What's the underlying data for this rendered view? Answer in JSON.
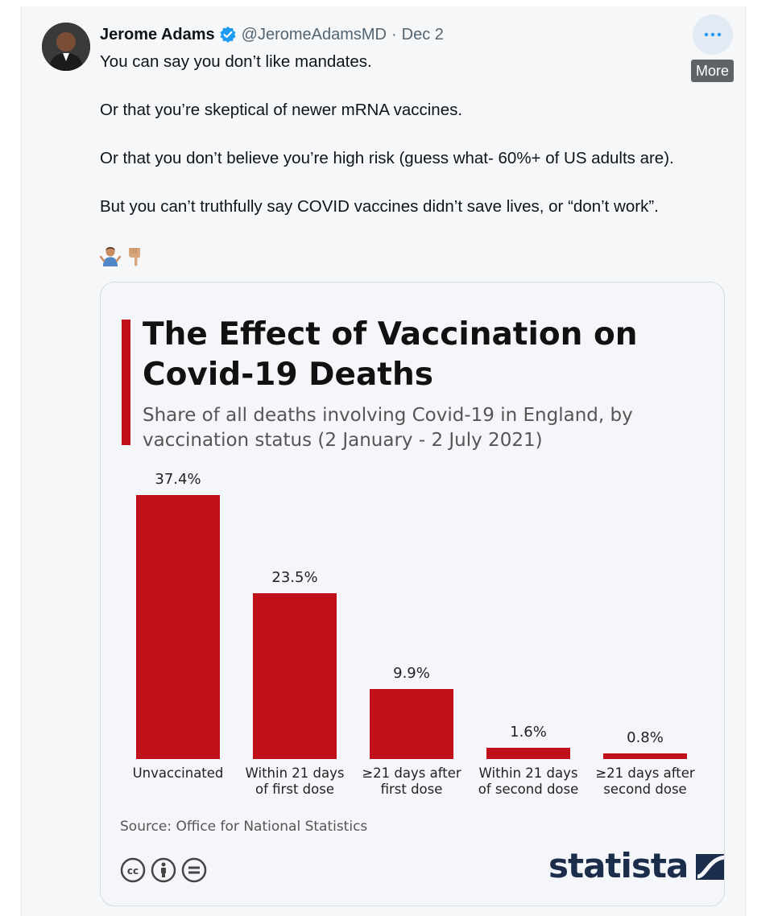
{
  "tweet": {
    "author_name": "Jerome Adams",
    "handle": "@JeromeAdamsMD",
    "separator": "·",
    "date": "Dec 2",
    "more_tooltip": "More",
    "paragraphs": [
      "You can say you don’t like mandates.",
      "Or that you’re skeptical of newer mRNA vaccines.",
      "Or that you don’t believe you’re high risk (guess what- 60%+ of US adults are).",
      "But you can’t truthfully say COVID vaccines didn’t save lives, or “don’t work”."
    ],
    "emojis": [
      "man-shrugging-icon",
      "backhand-index-pointing-down-icon"
    ]
  },
  "colors": {
    "bar": "#c0101a",
    "verified": "#1d9bf0",
    "statista": "#1b2d4a"
  },
  "chart_data": {
    "type": "bar",
    "title": "The Effect of Vaccination on Covid-19 Deaths",
    "subtitle": "Share of all deaths involving Covid-19 in England, by vaccination status (2 January - 2 July 2021)",
    "categories": [
      "Unvaccinated",
      "Within 21 days\nof first dose",
      "≥21 days after\nfirst dose",
      "Within 21 days\nof second dose",
      "≥21 days after\nsecond dose"
    ],
    "values": [
      37.4,
      23.5,
      9.9,
      1.6,
      0.8
    ],
    "value_labels": [
      "37.4%",
      "23.5%",
      "9.9%",
      "1.6%",
      "0.8%"
    ],
    "unit": "%",
    "grid": false,
    "legend": "none",
    "source": "Source: Office for National Statistics",
    "brand": "statista"
  }
}
